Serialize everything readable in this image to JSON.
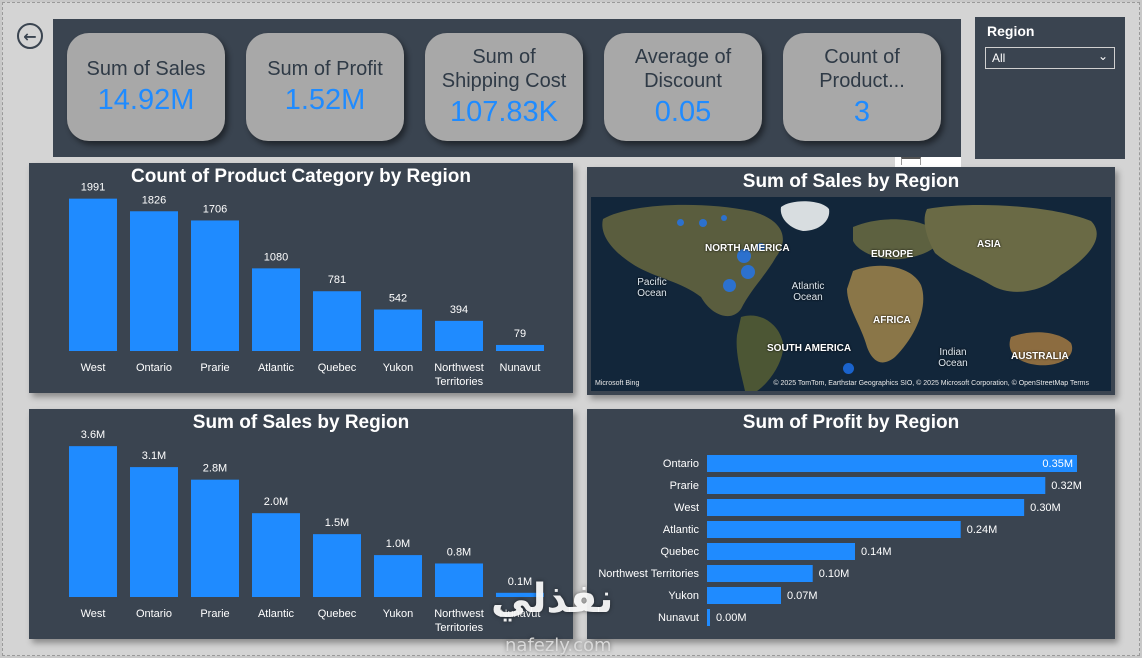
{
  "nav": {
    "back_icon": "arrow-left-circle-icon"
  },
  "kpis": [
    {
      "label": "Sum of Sales",
      "value": "14.92M"
    },
    {
      "label": "Sum of Profit",
      "value": "1.52M"
    },
    {
      "label": "Sum of Shipping Cost",
      "value": "107.83K"
    },
    {
      "label": "Average of Discount",
      "value": "0.05"
    },
    {
      "label": "Count of Product...",
      "value": "3"
    }
  ],
  "slicer": {
    "title": "Region",
    "selected": "All"
  },
  "colors": {
    "panel": "#3a4450",
    "bar": "#1f8bff",
    "kpi_card": "#a8a8a8",
    "text": "#ffffff"
  },
  "map": {
    "title": "Sum of Sales by Region",
    "labels": {
      "north_america": "NORTH AMERICA",
      "europe": "EUROPE",
      "asia": "ASIA",
      "africa": "AFRICA",
      "south_america": "SOUTH AMERICA",
      "australia": "AUSTRALIA"
    },
    "oceans": {
      "pacific": "Pacific Ocean",
      "atlantic": "Atlantic Ocean",
      "indian": "Indian Ocean"
    },
    "credit": "© 2025 TomTom, Earthstar Geographics SIO, © 2025 Microsoft Corporation, © OpenStreetMap  Terms",
    "logo": "Microsoft Bing"
  },
  "watermark": {
    "arabic": "نفذلي",
    "latin": "nafezly.com"
  },
  "chart_data": [
    {
      "type": "bar",
      "title": "Count of Product Category by Region",
      "categories": [
        "West",
        "Ontario",
        "Prarie",
        "Atlantic",
        "Quebec",
        "Yukon",
        "Northwest Territories",
        "Nunavut"
      ],
      "values": [
        1991,
        1826,
        1706,
        1080,
        781,
        542,
        394,
        79
      ],
      "data_labels": [
        "1991",
        "1826",
        "1706",
        "1080",
        "781",
        "542",
        "394",
        "79"
      ],
      "ylim": [
        0,
        2300
      ]
    },
    {
      "type": "bar",
      "title": "Sum of Sales by Region",
      "categories": [
        "West",
        "Ontario",
        "Prarie",
        "Atlantic",
        "Quebec",
        "Yukon",
        "Northwest Territories",
        "Nunavut"
      ],
      "values": [
        3.6,
        3.1,
        2.8,
        2.0,
        1.5,
        1.0,
        0.8,
        0.1
      ],
      "data_labels": [
        "3.6M",
        "3.1M",
        "2.8M",
        "2.0M",
        "1.5M",
        "1.0M",
        "0.8M",
        "0.1M"
      ],
      "ylim": [
        0,
        4.2
      ]
    },
    {
      "type": "bar",
      "orientation": "horizontal",
      "title": "Sum of Profit by Region",
      "categories": [
        "Ontario",
        "Prarie",
        "West",
        "Atlantic",
        "Quebec",
        "Northwest Territories",
        "Yukon",
        "Nunavut"
      ],
      "values": [
        0.35,
        0.32,
        0.3,
        0.24,
        0.14,
        0.1,
        0.07,
        0.0
      ],
      "data_labels": [
        "0.35M",
        "0.32M",
        "0.30M",
        "0.24M",
        "0.14M",
        "0.10M",
        "0.07M",
        "0.00M"
      ],
      "xlim": [
        0,
        0.35
      ]
    }
  ]
}
